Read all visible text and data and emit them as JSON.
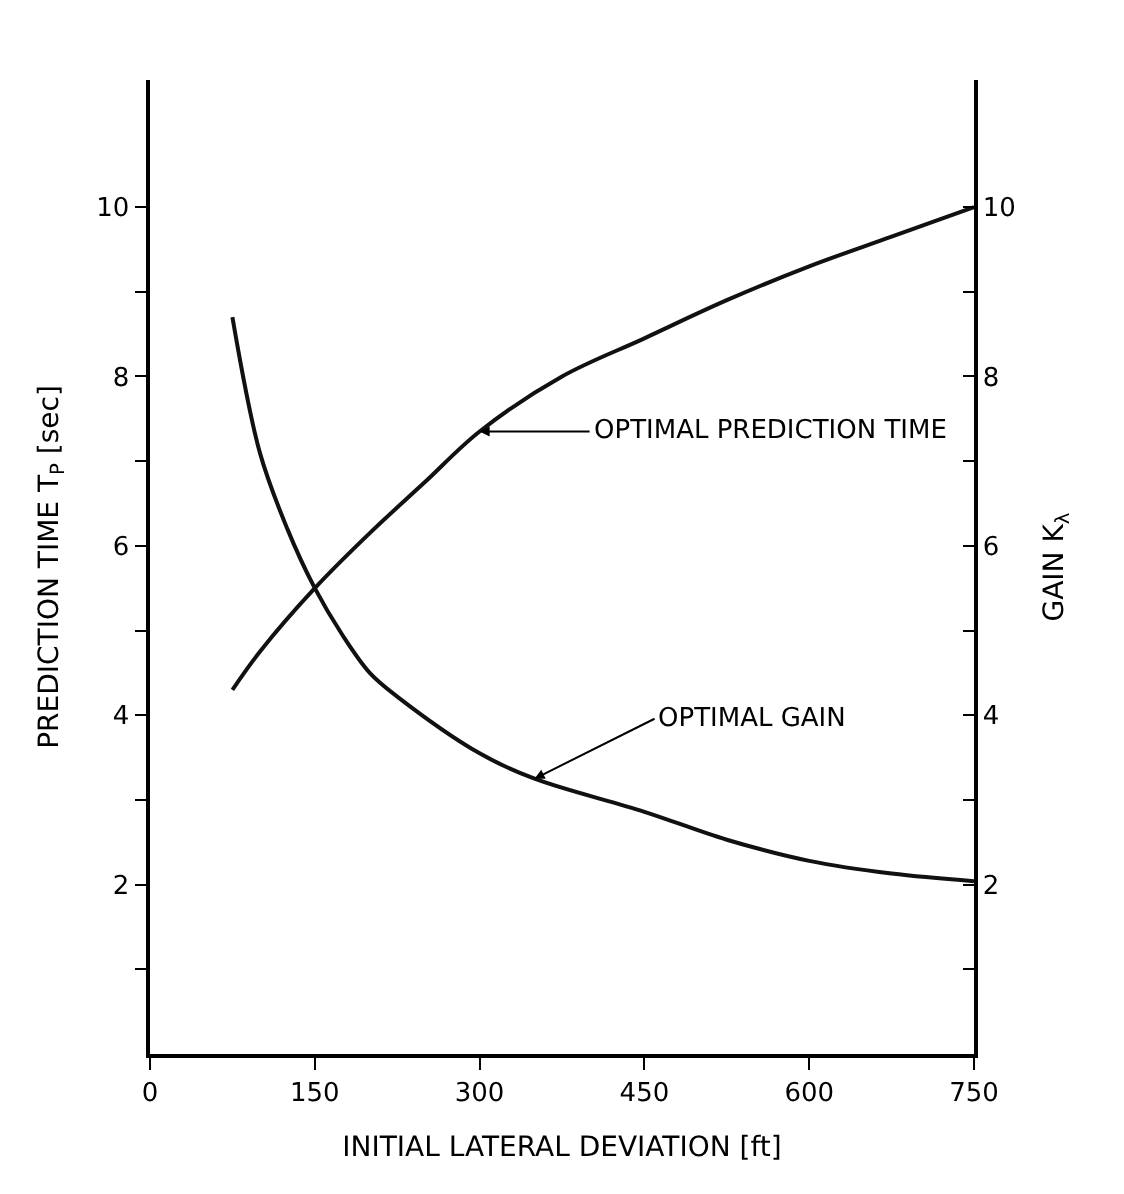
{
  "chart_data": {
    "type": "line",
    "xlabel": "INITIAL LATERAL DEVIATION [ft]",
    "ylabel": "PREDICTION TIME T$_{P}$ [sec]",
    "y2label": "GAIN K$_{λ}$",
    "series": [
      {
        "color": "#111111",
        "x": [
          75,
          100,
          150,
          200,
          250,
          300,
          375,
          450,
          525,
          600,
          675,
          750
        ],
        "values": [
          4.3,
          4.75,
          5.5,
          6.15,
          6.75,
          7.35,
          8.0,
          8.45,
          8.9,
          9.3,
          9.65,
          10.0
        ]
      },
      {
        "color": "#111111",
        "axis": "y2",
        "x": [
          75,
          100,
          125,
          150,
          175,
          200,
          225,
          300,
          350,
          450,
          525,
          600,
          675,
          750
        ],
        "values": [
          8.7,
          7.1,
          6.2,
          5.5,
          4.95,
          4.5,
          4.22,
          3.55,
          3.25,
          2.86,
          2.53,
          2.28,
          2.13,
          2.04
        ]
      }
    ],
    "annotations": [
      {
        "text": "OPTIMAL PREDICTION TIME",
        "x": 300,
        "y": 7.35
      },
      {
        "text": "OPTIMAL GAIN",
        "x": 350,
        "y": 3.25
      }
    ],
    "xlim": [
      0,
      750
    ],
    "xticks": [
      0,
      150,
      300,
      450,
      600,
      750
    ],
    "ylim": [
      0,
      11.5
    ],
    "yticks": [
      {
        "value": 1,
        "label": null
      },
      2,
      {
        "value": 3,
        "label": null
      },
      4,
      {
        "value": 5,
        "label": null
      },
      6,
      {
        "value": 7,
        "label": null
      },
      8,
      {
        "value": 9,
        "label": null
      },
      10
    ],
    "y2lim": [
      0,
      11.5
    ],
    "y2ticks": [
      {
        "value": 1,
        "label": null
      },
      2,
      {
        "value": 3,
        "label": null
      },
      4,
      {
        "value": 5,
        "label": null
      },
      6,
      {
        "value": 7,
        "label": null
      },
      8,
      {
        "value": 9,
        "label": null
      },
      10
    ],
    "marker": "none",
    "line_style": "solid"
  }
}
